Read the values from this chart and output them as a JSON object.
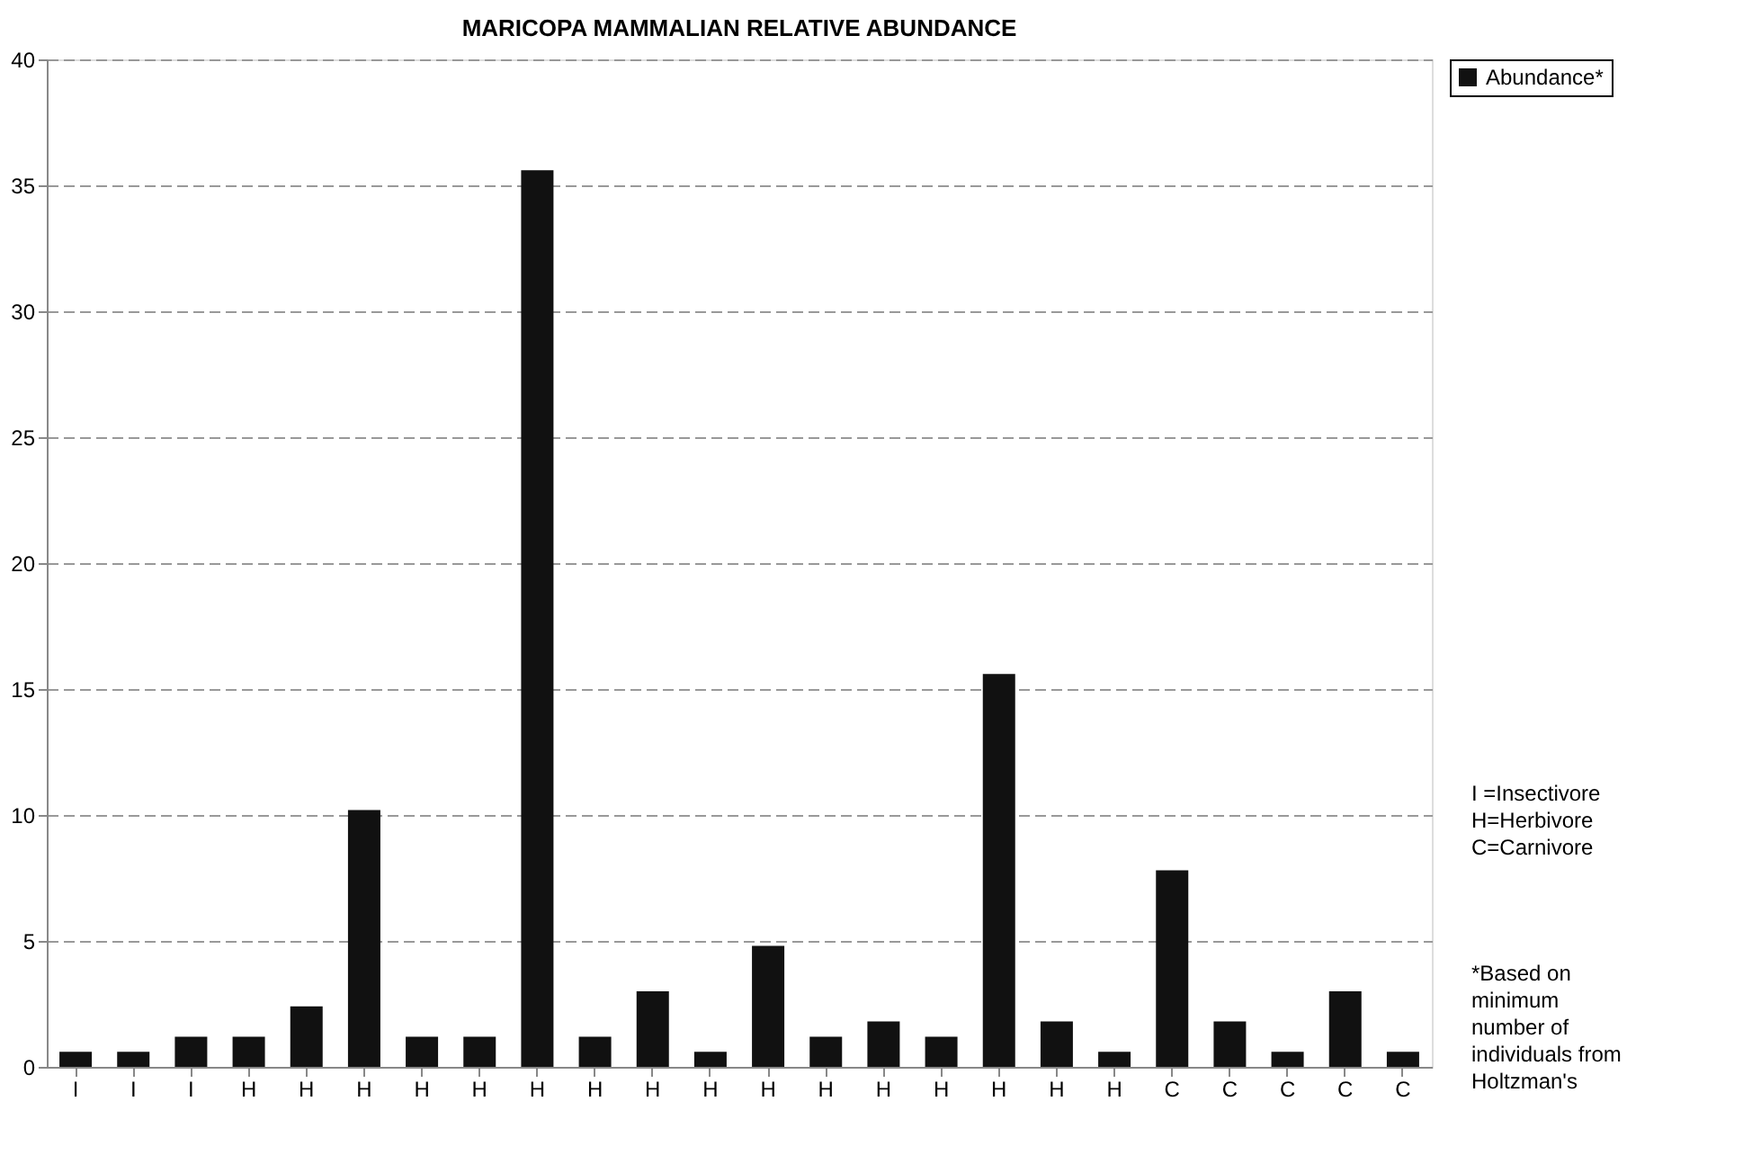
{
  "chart_data": {
    "type": "bar",
    "title": "MARICOPA MAMMALIAN RELATIVE ABUNDANCE",
    "categories": [
      "I",
      "I",
      "I",
      "H",
      "H",
      "H",
      "H",
      "H",
      "H",
      "H",
      "H",
      "H",
      "H",
      "H",
      "H",
      "H",
      "H",
      "H",
      "H",
      "C",
      "C",
      "C",
      "C",
      "C"
    ],
    "series": [
      {
        "name": "Abundance*",
        "color": "#111111",
        "values": [
          0.6,
          0.6,
          1.2,
          1.2,
          2.4,
          10.2,
          1.2,
          1.2,
          35.6,
          1.2,
          3.0,
          0.6,
          4.8,
          1.2,
          1.8,
          1.2,
          15.6,
          1.8,
          0.6,
          7.8,
          1.8,
          0.6,
          3.0,
          0.6
        ]
      }
    ],
    "ylim": [
      0,
      40
    ],
    "yticks": [
      0,
      5,
      10,
      15,
      20,
      25,
      30,
      35,
      40
    ],
    "grid": "y",
    "legend": "right",
    "annotations": [
      "I =Insectivore\nH=Herbivore\nC=Carnivore",
      "*Based on\nminimum\nnumber of\nindividuals from\nHoltzman's"
    ]
  }
}
